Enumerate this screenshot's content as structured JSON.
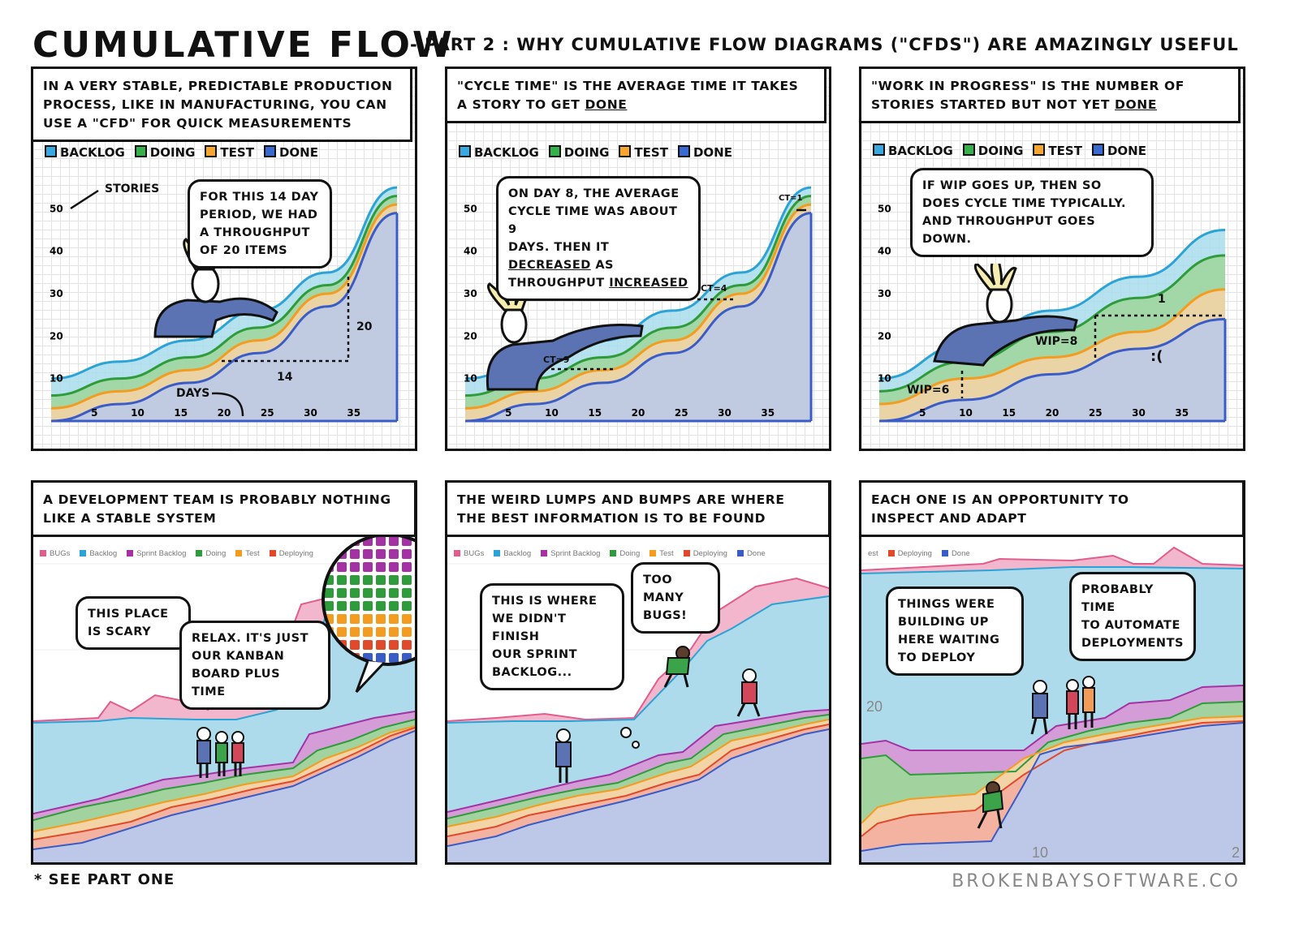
{
  "header": {
    "title": "CUMULATIVE FLOW",
    "subtitle": "- PART 2 : WHY CUMULATIVE FLOW DIAGRAMS (\"CFDs\") ARE AMAZINGLY USEFUL"
  },
  "legend_top": {
    "backlog": "BACKLOG",
    "doing": "DOING",
    "test": "TEST",
    "done": "DONE"
  },
  "colors": {
    "backlog": "#a9dcec",
    "doing": "#9fd59b",
    "test": "#f7d4a6",
    "done": "#b9c9ec",
    "backlog_line": "#2ba3d6",
    "doing_line": "#2e9c3a",
    "test_line": "#f39c1f",
    "done_line": "#3a5cc7",
    "bugs": "#f1b3c9",
    "sprint": "#d69ad6",
    "deploying": "#f3b0a0"
  },
  "panel1": {
    "caption_l1": "IN A VERY STABLE, PREDICTABLE PRODUCTION",
    "caption_l2": "PROCESS, LIKE IN MANUFACTURING, YOU CAN",
    "caption_l3": "USE A \"CFD\" FOR QUICK MEASUREMENTS",
    "bubble_l1": "FOR THIS 14 DAY",
    "bubble_l2": "PERIOD, WE HAD",
    "bubble_l3": "A THROUGHPUT",
    "bubble_l4": "OF 20 ITEMS",
    "stories_label": "STORIES",
    "days_label": "DAYS",
    "rise_label": "20",
    "run_label": "14"
  },
  "panel2": {
    "caption_l1": "\"CYCLE TIME\" IS THE AVERAGE TIME IT TAKES",
    "caption_l2": "A STORY TO GET",
    "caption_done": "DONE",
    "bubble_l1": "ON DAY 8, THE AVERAGE",
    "bubble_l2": "CYCLE TIME WAS ABOUT 9",
    "bubble_l3a": "DAYS. THEN IT",
    "bubble_l3b": "DECREASED",
    "bubble_l3c": "AS",
    "bubble_l4a": "THROUGHPUT",
    "bubble_l4b": "INCREASED",
    "ct1": "CT=9",
    "ct2": "CT=4",
    "ct3": "CT=1"
  },
  "panel3": {
    "caption_l1": "\"WORK IN PROGRESS\" IS THE NUMBER OF",
    "caption_l2": "STORIES STARTED BUT NOT YET",
    "caption_done": "DONE",
    "bubble_l1": "IF WIP GOES UP, THEN SO",
    "bubble_l2": "DOES CYCLE TIME TYPICALLY.",
    "bubble_l3": "AND THROUGHPUT GOES DOWN.",
    "wip1": "WIP=6",
    "wip2": "WIP=8",
    "one": "1",
    "sad": ":("
  },
  "panel4": {
    "caption_l1": "A DEVELOPMENT TEAM IS PROBABLY NOTHING",
    "caption_l2": "LIKE A STABLE SYSTEM",
    "bubble1_l1": "THIS PLACE",
    "bubble1_l2": "IS SCARY",
    "bubble2_l1": "RELAX. IT'S JUST",
    "bubble2_l2": "OUR KANBAN",
    "bubble2_l3": "BOARD PLUS TIME",
    "asterisk": "*"
  },
  "panel5": {
    "caption_l1": "THE WEIRD LUMPS AND BUMPS ARE WHERE",
    "caption_l2": "THE BEST INFORMATION IS TO BE FOUND",
    "bubble1_l1": "THIS IS WHERE",
    "bubble1_l2": "WE DIDN'T FINISH",
    "bubble1_l3": "OUR SPRINT",
    "bubble1_l4": "BACKLOG...",
    "bubble2_l1": "TOO MANY",
    "bubble2_l2": "BUGS!"
  },
  "panel6": {
    "caption_l1": "EACH ONE IS AN OPPORTUNITY TO",
    "caption_l2": "INSPECT AND ADAPT",
    "bubble1_l1": "THINGS WERE",
    "bubble1_l2": "BUILDING UP",
    "bubble1_l3": "HERE WAITING",
    "bubble1_l4": "TO DEPLOY",
    "bubble2_l1": "PROBABLY TIME",
    "bubble2_l2": "TO AUTOMATE",
    "bubble2_l3": "DEPLOYMENTS",
    "y20": "20",
    "x10": "10",
    "x2": "2"
  },
  "glegend": {
    "bugs": "BUGs",
    "backlog": "Backlog",
    "sprint": "Sprint Backlog",
    "doing": "Doing",
    "test": "Test",
    "deploying": "Deploying",
    "done": "Done",
    "est": "est"
  },
  "footer": {
    "footnote": "* SEE PART ONE",
    "credit": "BROKENBAYSOFTWARE.CO"
  },
  "chart_data": [
    {
      "type": "area",
      "title": "",
      "x_ticks": [
        5,
        10,
        15,
        20,
        25,
        30,
        35
      ],
      "y_ticks": [
        10,
        20,
        30,
        40,
        50
      ],
      "series": [
        {
          "name": "BACKLOG",
          "values": [
            10,
            14,
            19,
            26,
            35,
            55
          ]
        },
        {
          "name": "DOING",
          "values": [
            6,
            10,
            15,
            22,
            32,
            53
          ]
        },
        {
          "name": "TEST",
          "values": [
            3,
            7,
            12,
            19,
            30,
            51
          ]
        },
        {
          "name": "DONE",
          "values": [
            0,
            4,
            9,
            16,
            27,
            49
          ]
        }
      ],
      "x": [
        0,
        8,
        16,
        24,
        32,
        40
      ]
    },
    {
      "type": "area",
      "title": "",
      "x_ticks": [
        5,
        10,
        15,
        20,
        25,
        30,
        35
      ],
      "y_ticks": [
        10,
        20,
        30,
        40,
        50
      ],
      "series": [
        {
          "name": "BACKLOG",
          "values": [
            10,
            14,
            19,
            26,
            35,
            55
          ]
        },
        {
          "name": "DOING",
          "values": [
            6,
            10,
            15,
            22,
            32,
            53
          ]
        },
        {
          "name": "TEST",
          "values": [
            3,
            7,
            12,
            19,
            30,
            51
          ]
        },
        {
          "name": "DONE",
          "values": [
            0,
            4,
            9,
            16,
            27,
            49
          ]
        }
      ],
      "x": [
        0,
        8,
        16,
        24,
        32,
        40
      ]
    },
    {
      "type": "area",
      "title": "",
      "x_ticks": [
        5,
        10,
        15,
        20,
        25,
        30,
        35
      ],
      "y_ticks": [
        10,
        20,
        30,
        40,
        50
      ],
      "series": [
        {
          "name": "BACKLOG",
          "values": [
            10,
            18,
            26,
            34,
            45
          ]
        },
        {
          "name": "DOING",
          "values": [
            7,
            14,
            21,
            29,
            39
          ]
        },
        {
          "name": "TEST",
          "values": [
            4,
            10,
            15,
            21,
            31
          ]
        },
        {
          "name": "DONE",
          "values": [
            0,
            5,
            11,
            17,
            24
          ]
        }
      ],
      "x": [
        0,
        10,
        20,
        30,
        40
      ]
    }
  ]
}
